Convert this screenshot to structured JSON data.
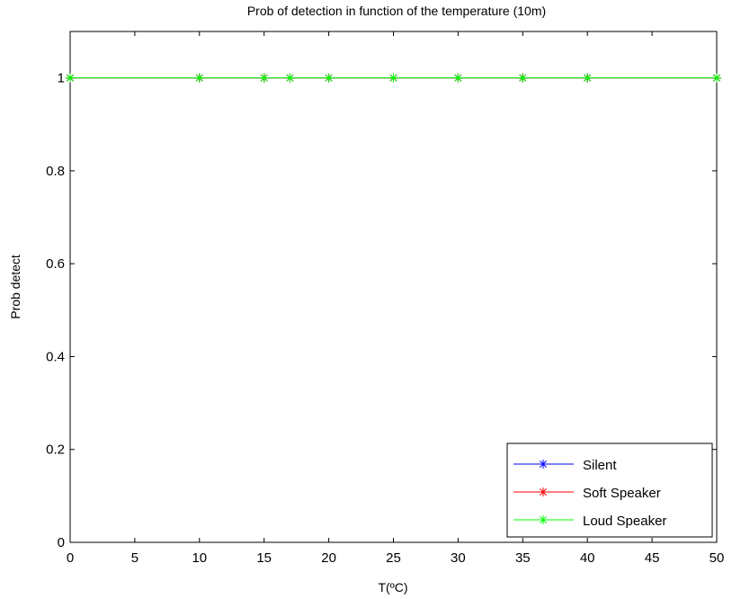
{
  "chart_data": {
    "type": "line",
    "title": "Prob of detection in function of the temperature (10m)",
    "xlabel": "T(ºC)",
    "ylabel": "Prob detect",
    "xlim": [
      0,
      50
    ],
    "ylim": [
      0,
      1.1
    ],
    "xticks": [
      0,
      5,
      10,
      15,
      20,
      25,
      30,
      35,
      40,
      45,
      50
    ],
    "yticks": [
      0,
      0.2,
      0.4,
      0.6,
      0.8,
      1
    ],
    "ytick_labels": [
      "0",
      "0.2",
      "0.4",
      "0.6",
      "0.8",
      "1"
    ],
    "x": [
      0,
      10,
      15,
      17,
      20,
      25,
      30,
      35,
      40,
      50
    ],
    "series": [
      {
        "name": "Silent",
        "color": "#0000ff",
        "marker": "asterisk",
        "values": [
          1,
          1,
          1,
          1,
          1,
          1,
          1,
          1,
          1,
          1
        ]
      },
      {
        "name": "Soft Speaker",
        "color": "#ff0000",
        "marker": "asterisk",
        "values": [
          1,
          1,
          1,
          1,
          1,
          1,
          1,
          1,
          1,
          1
        ]
      },
      {
        "name": "Loud Speaker",
        "color": "#00ff00",
        "marker": "asterisk",
        "values": [
          1,
          1,
          1,
          1,
          1,
          1,
          1,
          1,
          1,
          1
        ]
      }
    ],
    "legend_position": "bottom-right",
    "grid": false
  }
}
